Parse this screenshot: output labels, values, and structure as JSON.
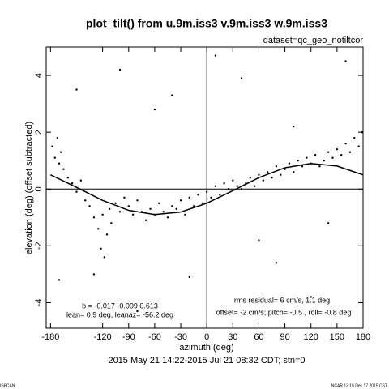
{
  "chart_data": {
    "type": "scatter",
    "title": "plot_tilt() from u.9m.iss3 v.9m.iss3 w.9m.iss3",
    "subtitle": "dataset=qc_geo_notiltcor",
    "x_label": "azimuth (deg)",
    "y_label": "elevation (deg)  (offset subtracted)",
    "caption": "2015 May 21 14:22-2015 Jul 21 08:32 CDT; stn=0",
    "annotations": [
      "b = -0.017 -0.009  0.613",
      "lean= 0.9 deg, leanaz= -56.2 deg",
      "rms residual= 6 cm/s, 1.1 deg",
      "offset= -2 cm/s; pitch= -0.5 , roll= -0.8 deg"
    ],
    "footer_left": "ISFCAN",
    "footer_right": "NCAR 13:15 Dec 17 2015 CST",
    "xlim": [
      -185,
      180
    ],
    "ylim": [
      -4.9,
      5
    ],
    "xticks": [
      -180,
      -120,
      -90,
      -60,
      -30,
      0,
      30,
      60,
      90,
      120,
      150,
      180
    ],
    "yticks": [
      -4,
      -2,
      0,
      2,
      4
    ],
    "color": "#000000",
    "points": {
      "x": [
        -178,
        -175,
        -172,
        -170,
        -168,
        -165,
        -160,
        -155,
        -150,
        -145,
        -140,
        -135,
        -130,
        -125,
        -122,
        -120,
        -118,
        -115,
        -112,
        -110,
        -105,
        -100,
        -95,
        -90,
        -85,
        -80,
        -75,
        -70,
        -65,
        -60,
        -55,
        -50,
        -45,
        -40,
        -35,
        -30,
        -25,
        -20,
        -15,
        -10,
        -5,
        0,
        5,
        10,
        15,
        20,
        25,
        30,
        35,
        40,
        45,
        50,
        55,
        60,
        65,
        70,
        75,
        80,
        85,
        90,
        95,
        100,
        105,
        110,
        115,
        120,
        125,
        130,
        135,
        140,
        145,
        150,
        155,
        160,
        165,
        170,
        175,
        179,
        -150,
        -100,
        -60,
        -20,
        40,
        80,
        120,
        160,
        -170,
        10,
        -80,
        100,
        -130,
        60,
        140,
        -40
      ],
      "y": [
        1.5,
        1.1,
        1.8,
        0.9,
        1.3,
        0.7,
        0.4,
        0.2,
        -0.1,
        0.3,
        -0.4,
        -0.6,
        -1.0,
        -1.4,
        -2.1,
        -0.9,
        -2.4,
        -1.6,
        -0.7,
        -1.2,
        -0.5,
        -0.8,
        -0.3,
        -0.6,
        -0.9,
        -0.4,
        -0.8,
        -1.1,
        -0.7,
        -0.9,
        -0.5,
        -0.8,
        -1.0,
        -0.6,
        -0.7,
        -0.4,
        -0.9,
        -0.3,
        -0.6,
        -0.2,
        -0.5,
        -0.1,
        -0.3,
        0.1,
        -0.2,
        0.2,
        0.0,
        0.3,
        0.1,
        0.0,
        0.2,
        0.4,
        0.1,
        0.5,
        0.3,
        0.6,
        0.4,
        0.8,
        0.5,
        0.7,
        0.9,
        0.6,
        1.0,
        0.8,
        1.1,
        0.9,
        1.2,
        0.8,
        1.0,
        1.3,
        1.1,
        1.4,
        1.2,
        1.6,
        1.3,
        1.8,
        1.5,
        2.0,
        3.5,
        4.2,
        2.8,
        -3.1,
        3.9,
        -2.6,
        -3.8,
        4.5,
        -3.2,
        4.7,
        -4.3,
        2.2,
        -3.0,
        -1.8,
        -1.2,
        3.3
      ]
    },
    "fit": {
      "x": [
        -180,
        -150,
        -120,
        -90,
        -60,
        -30,
        0,
        30,
        60,
        90,
        120,
        150,
        180
      ],
      "y": [
        0.5,
        0.06,
        -0.4,
        -0.75,
        -0.9,
        -0.81,
        -0.5,
        -0.06,
        0.4,
        0.75,
        0.9,
        0.81,
        0.5
      ]
    }
  }
}
